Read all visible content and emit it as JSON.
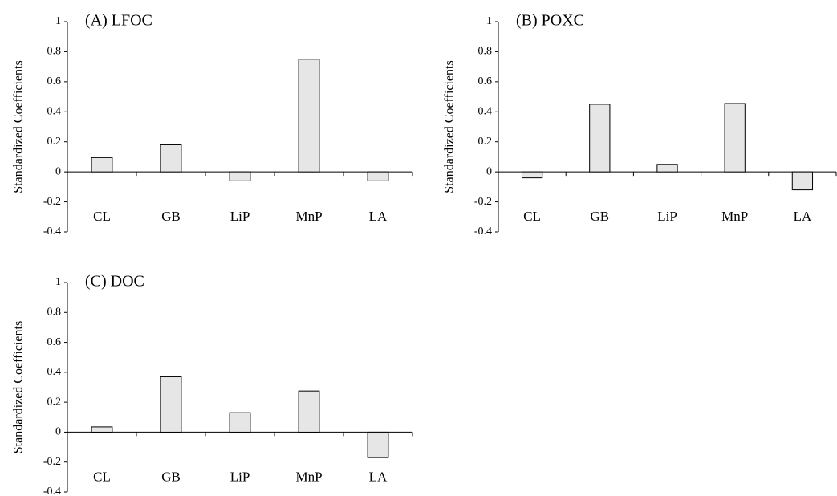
{
  "chart_data": [
    {
      "type": "bar",
      "title": "(A) LFOC",
      "y_label": "Standardized Coefficients",
      "categories": [
        "CL",
        "GB",
        "LiP",
        "MnP",
        "LA"
      ],
      "values": [
        0.095,
        0.18,
        -0.06,
        0.75,
        -0.06
      ],
      "color": "#e6e6e6",
      "ylim": [
        -0.4,
        1
      ],
      "yticks": [
        -0.4,
        -0.2,
        0,
        0.2,
        0.4,
        0.6,
        0.8,
        1
      ]
    },
    {
      "type": "bar",
      "title": "(B) POXC",
      "y_label": "Standardized Coefficients",
      "categories": [
        "CL",
        "GB",
        "LiP",
        "MnP",
        "LA"
      ],
      "values": [
        -0.04,
        0.45,
        0.05,
        0.455,
        -0.12
      ],
      "color": "#e6e6e6",
      "ylim": [
        -0.4,
        1
      ],
      "yticks": [
        -0.4,
        -0.2,
        0,
        0.2,
        0.4,
        0.6,
        0.8,
        1
      ]
    },
    {
      "type": "bar",
      "title": "(C) DOC",
      "y_label": "Standardized Coefficients",
      "categories": [
        "CL",
        "GB",
        "LiP",
        "MnP",
        "LA"
      ],
      "values": [
        0.035,
        0.37,
        0.13,
        0.275,
        -0.17
      ],
      "color": "#e6e6e6",
      "ylim": [
        -0.4,
        1
      ],
      "yticks": [
        -0.4,
        -0.2,
        0,
        0.2,
        0.4,
        0.6,
        0.8,
        1
      ]
    }
  ]
}
